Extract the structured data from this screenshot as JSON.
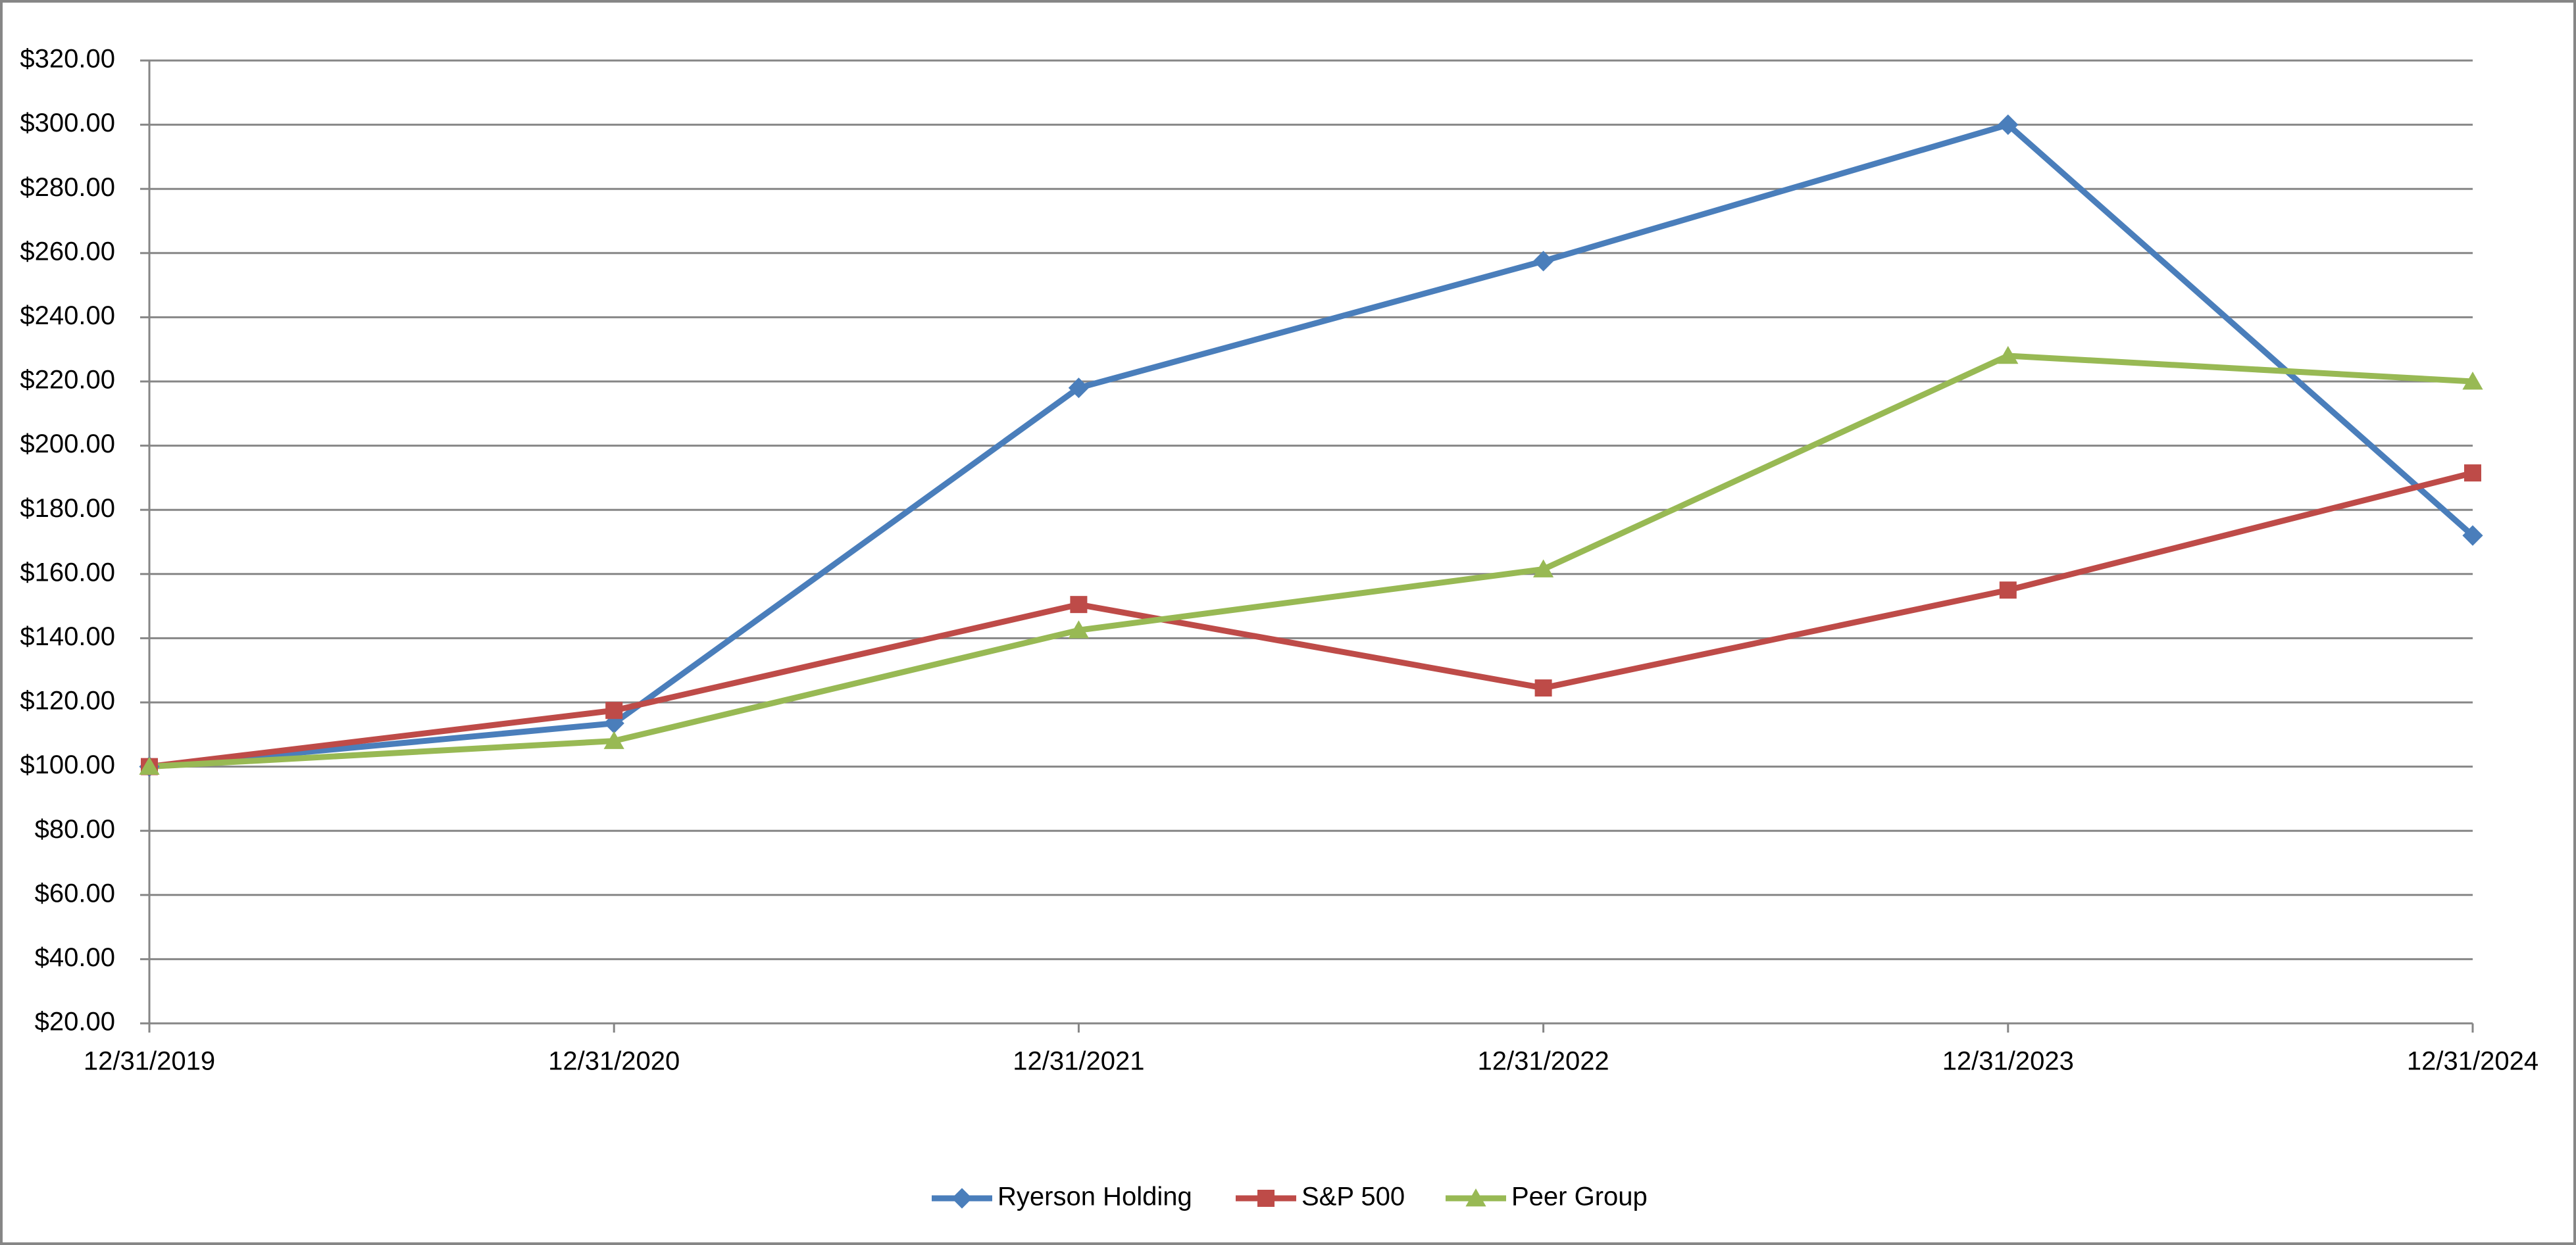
{
  "chart_data": {
    "type": "line",
    "categories": [
      "12/31/2019",
      "12/31/2020",
      "12/31/2021",
      "12/31/2022",
      "12/31/2023",
      "12/31/2024"
    ],
    "series": [
      {
        "name": "Ryerson Holding",
        "color": "#4a7ebb",
        "marker": "diamond",
        "values": [
          100,
          113.5,
          218,
          257.5,
          300,
          172
        ]
      },
      {
        "name": "S&P 500",
        "color": "#be4b48",
        "marker": "square",
        "values": [
          100,
          117.5,
          150.5,
          124.5,
          155,
          191.5
        ]
      },
      {
        "name": "Peer Group",
        "color": "#98b954",
        "marker": "triangle",
        "values": [
          100,
          108,
          142.5,
          161.5,
          228,
          220
        ]
      }
    ],
    "ylim": [
      20,
      320
    ],
    "yticks": [
      {
        "value": 20,
        "label": "$20.00"
      },
      {
        "value": 40,
        "label": "$40.00"
      },
      {
        "value": 60,
        "label": "$60.00"
      },
      {
        "value": 80,
        "label": "$80.00"
      },
      {
        "value": 100,
        "label": "$100.00"
      },
      {
        "value": 120,
        "label": "$120.00"
      },
      {
        "value": 140,
        "label": "$140.00"
      },
      {
        "value": 160,
        "label": "$160.00"
      },
      {
        "value": 180,
        "label": "$180.00"
      },
      {
        "value": 200,
        "label": "$200.00"
      },
      {
        "value": 220,
        "label": "$220.00"
      },
      {
        "value": 240,
        "label": "$240.00"
      },
      {
        "value": 260,
        "label": "$260.00"
      },
      {
        "value": 280,
        "label": "$280.00"
      },
      {
        "value": 300,
        "label": "$300.00"
      },
      {
        "value": 320,
        "label": "$320.00"
      }
    ],
    "grid": true,
    "legend": "bottom"
  }
}
